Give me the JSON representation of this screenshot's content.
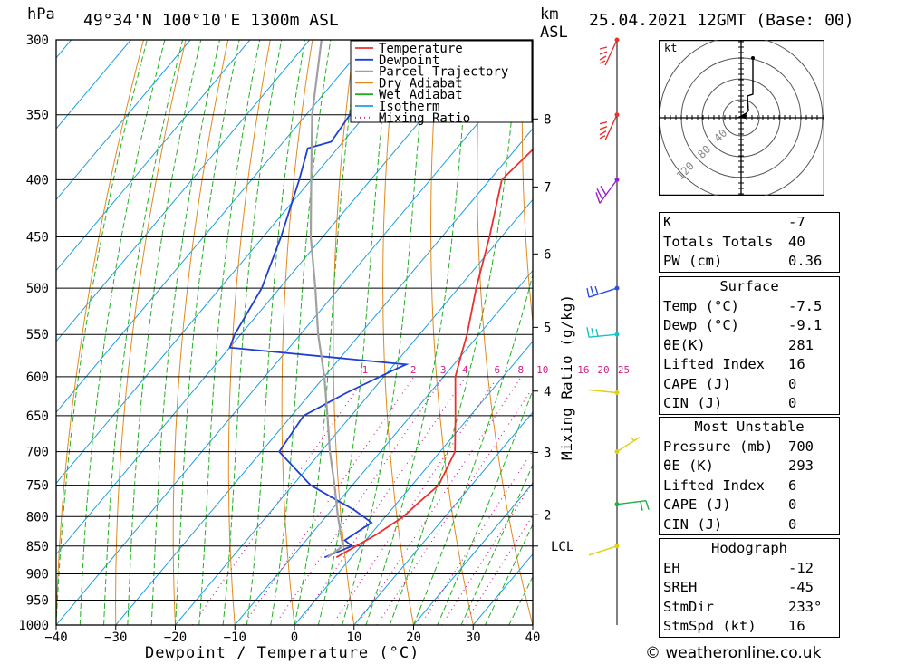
{
  "header": {
    "pressure_unit": "hPa",
    "location": "49°34'N  100°10'E  1300m  ASL",
    "km_label": "km",
    "asl_label": "ASL",
    "datetime": "25.04.2021  12GMT  (Base: 00)"
  },
  "legend": [
    {
      "label": "Temperature",
      "color": "#e8312f"
    },
    {
      "label": "Dewpoint",
      "color": "#1f3fd4"
    },
    {
      "label": "Parcel Trajectory",
      "color": "#a0a0a0"
    },
    {
      "label": "Dry Adiabat",
      "color": "#e08a1e"
    },
    {
      "label": "Wet Adiabat",
      "color": "#22b022"
    },
    {
      "label": "Isotherm",
      "color": "#1e9ee0"
    },
    {
      "label": "Mixing Ratio",
      "color": "#d0208a"
    }
  ],
  "chart_data": {
    "type": "line",
    "subtype": "skew-T log-P sounding",
    "xlabel": "Dewpoint / Temperature (°C)",
    "ylabel": "hPa",
    "xlim": [
      -40,
      40
    ],
    "ylim": [
      1000,
      300
    ],
    "x_ticks": [
      -40,
      -30,
      -20,
      -10,
      0,
      10,
      20,
      30,
      40
    ],
    "pressure_levels": [
      300,
      350,
      400,
      450,
      500,
      550,
      600,
      650,
      700,
      750,
      800,
      850,
      900,
      950,
      1000
    ],
    "height_km": [
      {
        "km": "8",
        "p": 353
      },
      {
        "km": "7",
        "p": 406
      },
      {
        "km": "6",
        "p": 466
      },
      {
        "km": "5",
        "p": 542
      },
      {
        "km": "4",
        "p": 618
      },
      {
        "km": "3",
        "p": 701
      },
      {
        "km": "2",
        "p": 797
      },
      {
        "km": "LCL",
        "p": 850
      }
    ],
    "mixing_ratio_label": "Mixing Ratio (g/kg)",
    "mixing_ratio_values": [
      "1",
      "2",
      "3",
      "4",
      "6",
      "8",
      "10",
      "16",
      "20",
      "25"
    ],
    "series": [
      {
        "name": "Temperature",
        "color": "#e8312f",
        "points": [
          [
            870,
            -2.5
          ],
          [
            850,
            -0.8
          ],
          [
            830,
            1.0
          ],
          [
            800,
            3.0
          ],
          [
            780,
            3.5
          ],
          [
            750,
            4.5
          ],
          [
            700,
            2.5
          ],
          [
            650,
            -2.5
          ],
          [
            600,
            -8
          ],
          [
            575,
            -10
          ],
          [
            550,
            -12
          ],
          [
            500,
            -17
          ],
          [
            450,
            -22
          ],
          [
            400,
            -28
          ],
          [
            375,
            -27
          ],
          [
            360,
            -22
          ],
          [
            340,
            -24
          ],
          [
            300,
            -29
          ]
        ]
      },
      {
        "name": "Dewpoint",
        "color": "#1f3fd4",
        "points": [
          [
            870,
            -4.5
          ],
          [
            850,
            -1.5
          ],
          [
            840,
            -3.5
          ],
          [
            810,
            -1.5
          ],
          [
            790,
            -6
          ],
          [
            750,
            -17
          ],
          [
            700,
            -27
          ],
          [
            650,
            -28
          ],
          [
            620,
            -24
          ],
          [
            590,
            -19
          ],
          [
            585,
            -18
          ],
          [
            565,
            -50
          ],
          [
            550,
            -51
          ],
          [
            500,
            -53
          ],
          [
            450,
            -57
          ],
          [
            400,
            -62
          ],
          [
            375,
            -65
          ],
          [
            370,
            -62
          ],
          [
            340,
            -63
          ],
          [
            300,
            -54
          ]
        ]
      },
      {
        "name": "Parcel Trajectory",
        "color": "#a0a0a0",
        "points": [
          [
            870,
            -4
          ],
          [
            850,
            -3
          ],
          [
            800,
            -8
          ],
          [
            750,
            -13
          ],
          [
            700,
            -18.5
          ],
          [
            650,
            -24
          ],
          [
            600,
            -30
          ],
          [
            550,
            -37
          ],
          [
            500,
            -44
          ],
          [
            450,
            -52
          ],
          [
            400,
            -60
          ],
          [
            350,
            -69
          ],
          [
            300,
            -78
          ]
        ]
      }
    ]
  },
  "wind_profile": [
    {
      "p": 300,
      "color": "#e8312f"
    },
    {
      "p": 350,
      "color": "#e8312f"
    },
    {
      "p": 400,
      "color": "#9a1ed0"
    },
    {
      "p": 500,
      "color": "#2a4fe0"
    },
    {
      "p": 550,
      "color": "#18c0c8"
    },
    {
      "p": 620,
      "color": "#e0d010"
    },
    {
      "p": 700,
      "color": "#e0d010"
    },
    {
      "p": 780,
      "color": "#20b040"
    },
    {
      "p": 850,
      "color": "#e0d010"
    }
  ],
  "hodograph": {
    "unit": "kt",
    "rings": [
      "40",
      "80",
      "120"
    ]
  },
  "indices": {
    "general": [
      {
        "label": "K",
        "value": "-7"
      },
      {
        "label": "Totals Totals",
        "value": "40"
      },
      {
        "label": "PW (cm)",
        "value": "0.36"
      }
    ],
    "surface": {
      "title": "Surface",
      "rows": [
        {
          "label": "Temp (°C)",
          "value": "-7.5"
        },
        {
          "label": "Dewp (°C)",
          "value": "-9.1"
        },
        {
          "label": "θE(K)",
          "value": "281"
        },
        {
          "label": "Lifted Index",
          "value": "16"
        },
        {
          "label": "CAPE (J)",
          "value": "0"
        },
        {
          "label": "CIN (J)",
          "value": "0"
        }
      ]
    },
    "most_unstable": {
      "title": "Most Unstable",
      "rows": [
        {
          "label": "Pressure (mb)",
          "value": "700"
        },
        {
          "label": "θE (K)",
          "value": "293"
        },
        {
          "label": "Lifted Index",
          "value": "6"
        },
        {
          "label": "CAPE (J)",
          "value": "0"
        },
        {
          "label": "CIN (J)",
          "value": "0"
        }
      ]
    },
    "hodograph": {
      "title": "Hodograph",
      "rows": [
        {
          "label": "EH",
          "value": "-12"
        },
        {
          "label": "SREH",
          "value": "-45"
        },
        {
          "label": "StmDir",
          "value": "233°"
        },
        {
          "label": "StmSpd (kt)",
          "value": "16"
        }
      ]
    }
  },
  "footer": {
    "copyright": "© weatheronline.co.uk"
  }
}
